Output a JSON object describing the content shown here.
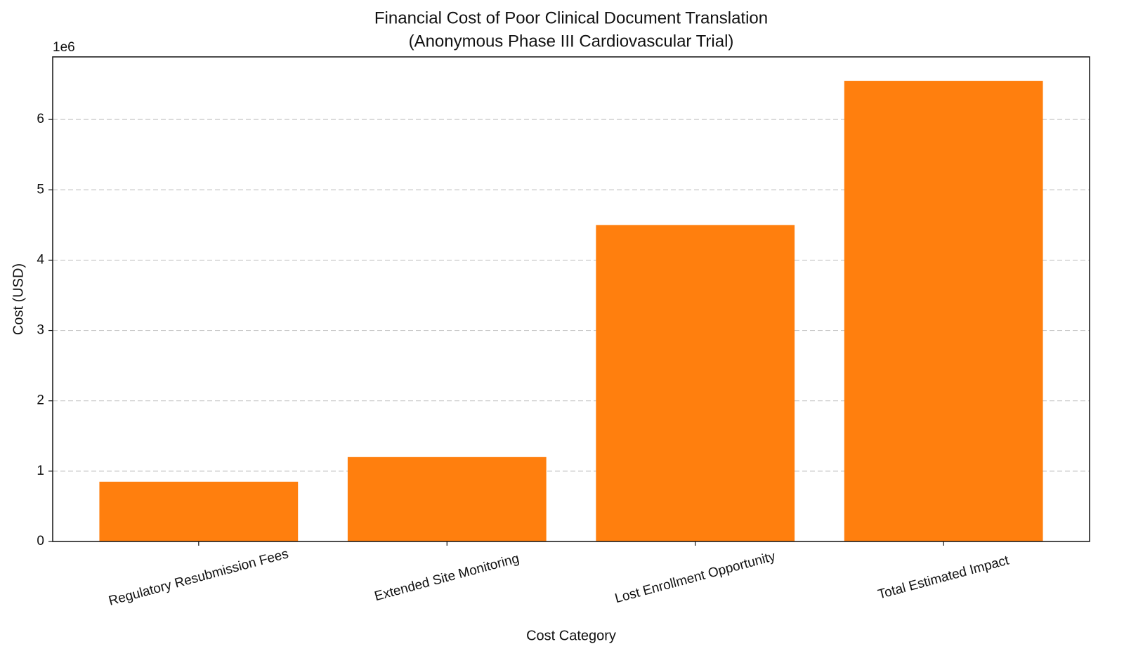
{
  "chart_data": {
    "type": "bar",
    "title": "Financial Cost of Poor Clinical Document Translation",
    "subtitle": "(Anonymous Phase III Cardiovascular Trial)",
    "x_label": "Cost Category",
    "y_label": "Cost (USD)",
    "y_offset_label": "1e6",
    "categories": [
      "Regulatory Resubmission Fees",
      "Extended Site Monitoring",
      "Lost Enrollment Opportunity",
      "Total Estimated Impact"
    ],
    "values": [
      850000,
      1200000,
      4500000,
      6550000
    ],
    "color": "#ff7f0e",
    "ylim": [
      0,
      6890000
    ],
    "yticks": [
      0,
      {
        "value": 1000000,
        "label": "1"
      },
      {
        "value": 2000000,
        "label": "2"
      },
      {
        "value": 3000000,
        "label": "3"
      },
      {
        "value": 4000000,
        "label": "4"
      },
      {
        "value": 5000000,
        "label": "5"
      },
      {
        "value": 6000000,
        "label": "6"
      }
    ],
    "grid": true
  }
}
